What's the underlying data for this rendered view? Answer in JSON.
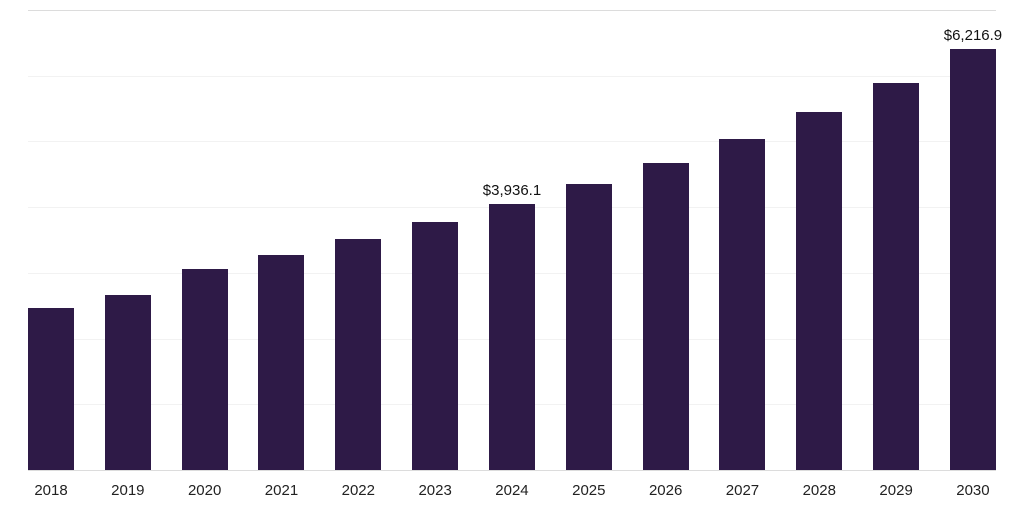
{
  "chart_data": {
    "type": "bar",
    "title": "",
    "xlabel": "",
    "ylabel": "",
    "categories": [
      "2018",
      "2019",
      "2020",
      "2021",
      "2022",
      "2023",
      "2024",
      "2025",
      "2026",
      "2027",
      "2028",
      "2029",
      "2030"
    ],
    "values": [
      2390,
      2585,
      2970,
      3180,
      3415,
      3670,
      3936.1,
      4235,
      4545,
      4900,
      5290,
      5720,
      6216.9
    ],
    "data_labels": {
      "2024": "$3,936.1",
      "2030": "$6,216.9"
    },
    "ylim": [
      0,
      6800
    ],
    "grid": true,
    "gridline_count": 8,
    "legend": "none",
    "bar_color": "#2e1a47",
    "gridline_color": "#f2f2f2",
    "edge_line_color": "#dcdcdc",
    "label_color": "#111111",
    "tick_label_color": "#222222"
  }
}
